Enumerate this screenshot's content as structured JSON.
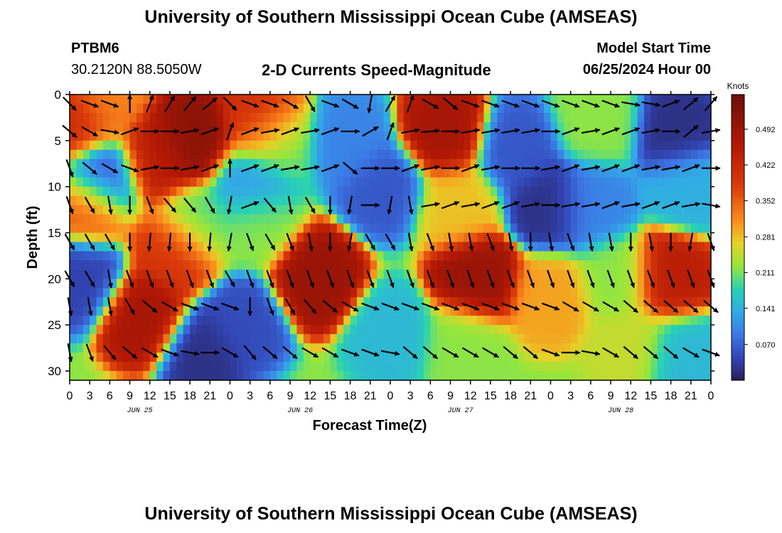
{
  "page": {
    "title": "University of Southern Mississippi Ocean Cube (AMSEAS)",
    "station_id": "PTBM6",
    "coordinates": "30.2120N  88.5050W",
    "plot_title": "2-D Currents Speed-Magnitude",
    "model_start_label": "Model Start Time",
    "model_start_value": "06/25/2024 Hour 00",
    "bottom_title": "University of Southern Mississippi Ocean Cube (AMSEAS)"
  },
  "chart_data": {
    "type": "heatmap",
    "title": "2-D Currents Speed-Magnitude",
    "xlabel": "Forecast Time(Z)",
    "ylabel": "Depth (ft)",
    "x_hours": [
      0,
      96
    ],
    "y_range": [
      0,
      31
    ],
    "y_ticks": [
      0,
      5,
      10,
      15,
      20,
      25,
      30
    ],
    "x_tick_labels": [
      "0",
      "3",
      "6",
      "9",
      "12",
      "15",
      "18",
      "21",
      "0",
      "3",
      "6",
      "9",
      "12",
      "15",
      "18",
      "21",
      "0",
      "3",
      "6",
      "9",
      "12",
      "15",
      "18",
      "21",
      "0",
      "3",
      "6",
      "9",
      "12",
      "15",
      "18",
      "21",
      "0"
    ],
    "date_labels": [
      {
        "text": "JUN 25",
        "hour": 10.5
      },
      {
        "text": "JUN 26",
        "hour": 34.5
      },
      {
        "text": "JUN 27",
        "hour": 58.5
      },
      {
        "text": "JUN 28",
        "hour": 82.5
      }
    ],
    "colorbar": {
      "unit": "Knots",
      "range": [
        0.0,
        0.56
      ],
      "ticks": [
        0.07,
        0.141,
        0.211,
        0.281,
        0.352,
        0.422,
        0.492
      ],
      "tick_labels": [
        "0.070",
        "0.141",
        "0.211",
        "0.281",
        "0.352",
        "0.422",
        "0.492"
      ]
    },
    "speed_centers": [
      {
        "hour": 18,
        "depth": 5,
        "speed": 0.52
      },
      {
        "hour": 13,
        "depth": 7,
        "speed": 0.45
      },
      {
        "hour": 1,
        "depth": 3,
        "speed": 0.42
      },
      {
        "hour": 3,
        "depth": 12,
        "speed": 0.36
      },
      {
        "hour": 11,
        "depth": 24,
        "speed": 0.48
      },
      {
        "hour": 16,
        "depth": 17,
        "speed": 0.4
      },
      {
        "hour": 5,
        "depth": 1,
        "speed": 0.32
      },
      {
        "hour": 5,
        "depth": 9,
        "speed": 0.04
      },
      {
        "hour": 2,
        "depth": 20,
        "speed": 0.04
      },
      {
        "hour": 20,
        "depth": 28,
        "speed": 0.02
      },
      {
        "hour": 19,
        "depth": 14,
        "speed": 0.2
      },
      {
        "hour": 29,
        "depth": 3,
        "speed": 0.42
      },
      {
        "hour": 27,
        "depth": 10,
        "speed": 0.12
      },
      {
        "hour": 28,
        "depth": 14,
        "speed": 0.22
      },
      {
        "hour": 26,
        "depth": 25,
        "speed": 0.05
      },
      {
        "hour": 37,
        "depth": 20,
        "speed": 0.5
      },
      {
        "hour": 31,
        "depth": 5,
        "speed": 0.2
      },
      {
        "hour": 42,
        "depth": 5,
        "speed": 0.1
      },
      {
        "hour": 47,
        "depth": 10,
        "speed": 0.06
      },
      {
        "hour": 48,
        "depth": 26,
        "speed": 0.15
      },
      {
        "hour": 56,
        "depth": 4,
        "speed": 0.48
      },
      {
        "hour": 61,
        "depth": 20,
        "speed": 0.5
      },
      {
        "hour": 58,
        "depth": 12,
        "speed": 0.28
      },
      {
        "hour": 59,
        "depth": 27,
        "speed": 0.22
      },
      {
        "hour": 67,
        "depth": 6,
        "speed": 0.06
      },
      {
        "hour": 72,
        "depth": 12,
        "speed": 0.02
      },
      {
        "hour": 72,
        "depth": 22,
        "speed": 0.3
      },
      {
        "hour": 79,
        "depth": 3,
        "speed": 0.22
      },
      {
        "hour": 78,
        "depth": 12,
        "speed": 0.1
      },
      {
        "hour": 82,
        "depth": 20,
        "speed": 0.22
      },
      {
        "hour": 90,
        "depth": 20,
        "speed": 0.45
      },
      {
        "hour": 91,
        "depth": 4,
        "speed": 0.02
      },
      {
        "hour": 93,
        "depth": 10,
        "speed": 0.14
      },
      {
        "hour": 92,
        "depth": 28,
        "speed": 0.15
      },
      {
        "hour": 84,
        "depth": 27,
        "speed": 0.25
      }
    ],
    "arrow_depths": [
      1,
      4,
      8,
      12,
      16,
      20,
      23,
      28
    ],
    "arrow_hours": [
      0,
      3,
      6,
      9,
      12,
      15,
      18,
      21,
      24,
      27,
      30,
      33,
      36,
      39,
      42,
      45,
      48,
      51,
      54,
      57,
      60,
      63,
      66,
      69,
      72,
      75,
      78,
      81,
      84,
      87,
      90,
      93,
      96
    ],
    "arrow_direction_deg": {
      "1": [
        -45,
        -20,
        -20,
        90,
        70,
        60,
        50,
        40,
        -45,
        -20,
        -20,
        -30,
        -60,
        -20,
        -30,
        -100,
        60,
        70,
        -30,
        -40,
        -20,
        -20,
        -20,
        -20,
        -20,
        -20,
        -20,
        -20,
        -10,
        -10,
        20,
        40,
        50
      ],
      "4": [
        -40,
        -30,
        -10,
        20,
        0,
        0,
        10,
        20,
        70,
        20,
        10,
        20,
        10,
        20,
        0,
        30,
        70,
        10,
        5,
        0,
        10,
        10,
        10,
        10,
        0,
        20,
        10,
        20,
        20,
        10,
        0,
        40,
        10
      ],
      "8": [
        -70,
        -40,
        -30,
        -20,
        10,
        0,
        10,
        20,
        90,
        20,
        20,
        10,
        10,
        20,
        -40,
        0,
        0,
        20,
        10,
        0,
        20,
        10,
        0,
        0,
        10,
        20,
        10,
        20,
        20,
        10,
        10,
        20,
        0
      ],
      "12": [
        -70,
        -60,
        -80,
        -90,
        -70,
        -50,
        -50,
        -60,
        -100,
        20,
        -50,
        -80,
        -60,
        -90,
        -100,
        0,
        -100,
        -80,
        10,
        20,
        10,
        20,
        20,
        10,
        0,
        10,
        10,
        20,
        10,
        20,
        20,
        10,
        -10
      ],
      "16": [
        -60,
        -60,
        -60,
        -90,
        -95,
        -95,
        -90,
        -95,
        -100,
        -70,
        -60,
        -70,
        -80,
        -90,
        -100,
        -60,
        -60,
        -80,
        -70,
        -80,
        -80,
        -70,
        -80,
        -90,
        -80,
        -70,
        -80,
        -80,
        -90,
        -80,
        -90,
        -100,
        -70
      ],
      "20": [
        -60,
        -60,
        -80,
        -70,
        -70,
        -70,
        -70,
        -70,
        -60,
        -70,
        -70,
        -70,
        -70,
        -70,
        -70,
        -70,
        -70,
        -70,
        -70,
        -70,
        -70,
        -70,
        -70,
        -70,
        -70,
        -70,
        -70,
        -70,
        -70,
        -70,
        -70,
        -70,
        -70
      ],
      "23": [
        -80,
        -80,
        -80,
        -60,
        -40,
        -30,
        -20,
        -20,
        -20,
        -90,
        -70,
        -60,
        -50,
        -40,
        -30,
        -20,
        -20,
        -20,
        -20,
        -20,
        -20,
        -20,
        -20,
        -20,
        -20,
        -30,
        -30,
        -30,
        -40,
        -40,
        -40,
        -40,
        -40
      ],
      "28": [
        -80,
        -70,
        -50,
        -40,
        -30,
        -20,
        -10,
        0,
        -30,
        -50,
        -40,
        -40,
        -30,
        -30,
        -20,
        -20,
        -10,
        -40,
        -40,
        -30,
        -30,
        -30,
        -40,
        -40,
        -20,
        0,
        -10,
        -30,
        -40,
        -40,
        -40,
        -30,
        -20
      ]
    }
  }
}
